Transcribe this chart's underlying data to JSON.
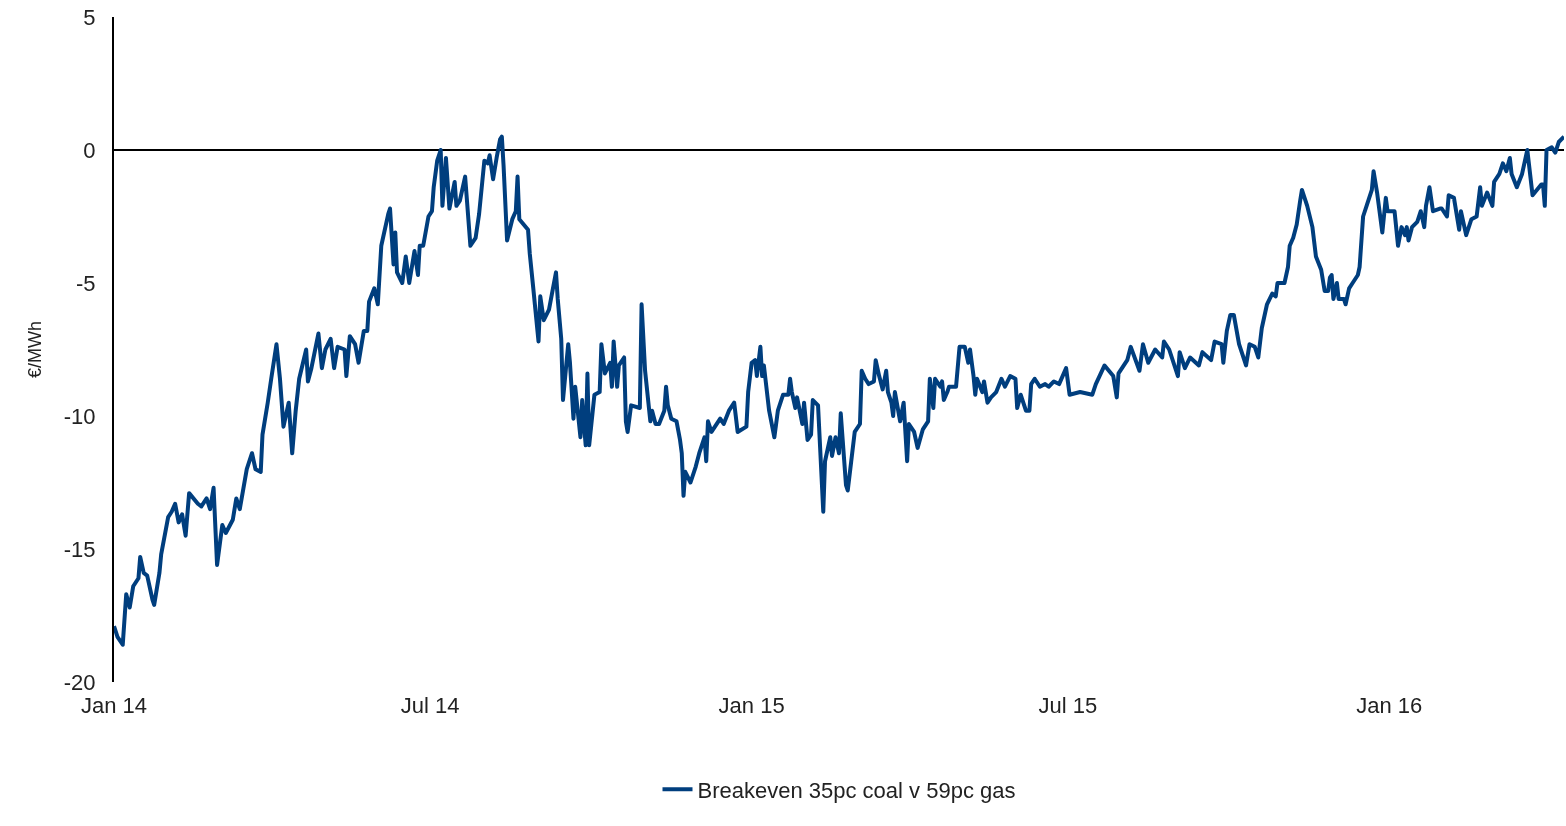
{
  "chart_data": {
    "type": "line",
    "ylabel": "€/MWh",
    "xlim": [
      "2014-01-01",
      "2016-04-10"
    ],
    "xticks": [
      {
        "value": "2014-01-01",
        "label": "Jan 14"
      },
      {
        "value": "2014-07-01",
        "label": "Jul 14"
      },
      {
        "value": "2015-01-01",
        "label": "Jan 15"
      },
      {
        "value": "2015-07-01",
        "label": "Jul 15"
      },
      {
        "value": "2016-01-01",
        "label": "Jan 16"
      }
    ],
    "ylim": [
      -20,
      5
    ],
    "yticks": [
      -20,
      -15,
      -10,
      -5,
      0,
      5
    ],
    "grid": false,
    "legend": "bottom",
    "marker": "none",
    "line_style": "solid",
    "ref_lines": [
      {
        "axis": "y",
        "value": 0,
        "color": "#000000"
      }
    ],
    "x": [
      "2014-01-01",
      "2014-01-03",
      "2014-01-06",
      "2014-01-08",
      "2014-01-10",
      "2014-01-12",
      "2014-01-15",
      "2014-01-16",
      "2014-01-18",
      "2014-01-20",
      "2014-01-23",
      "2014-01-24",
      "2014-01-27",
      "2014-01-28",
      "2014-02-01",
      "2014-02-03",
      "2014-02-05",
      "2014-02-07",
      "2014-02-09",
      "2014-02-11",
      "2014-02-13",
      "2014-02-18",
      "2014-02-20",
      "2014-02-23",
      "2014-02-25",
      "2014-02-27",
      "2014-03-01",
      "2014-03-04",
      "2014-03-06",
      "2014-03-10",
      "2014-03-12",
      "2014-03-14",
      "2014-03-18",
      "2014-03-21",
      "2014-03-23",
      "2014-03-26",
      "2014-03-27",
      "2014-03-30",
      "2014-04-01",
      "2014-04-04",
      "2014-04-06",
      "2014-04-08",
      "2014-04-11",
      "2014-04-13",
      "2014-04-15",
      "2014-04-17",
      "2014-04-21",
      "2014-04-22",
      "2014-04-24",
      "2014-04-28",
      "2014-04-30",
      "2014-05-02",
      "2014-05-05",
      "2014-05-07",
      "2014-05-09",
      "2014-05-13",
      "2014-05-14",
      "2014-05-16",
      "2014-05-19",
      "2014-05-21",
      "2014-05-24",
      "2014-05-26",
      "2014-05-27",
      "2014-05-30",
      "2014-06-01",
      "2014-06-03",
      "2014-06-07",
      "2014-06-08",
      "2014-06-10",
      "2014-06-11",
      "2014-06-12",
      "2014-06-15",
      "2014-06-17",
      "2014-06-19",
      "2014-06-22",
      "2014-06-24",
      "2014-06-25",
      "2014-06-27",
      "2014-06-30",
      "2014-07-02",
      "2014-07-03",
      "2014-07-05",
      "2014-07-07",
      "2014-07-08",
      "2014-07-10",
      "2014-07-12",
      "2014-07-15",
      "2014-07-16",
      "2014-07-18",
      "2014-07-21",
      "2014-07-24",
      "2014-07-27",
      "2014-07-29",
      "2014-08-01",
      "2014-08-03",
      "2014-08-04",
      "2014-08-06",
      "2014-08-08",
      "2014-08-10",
      "2014-08-11",
      "2014-08-12",
      "2014-08-14",
      "2014-08-17",
      "2014-08-19",
      "2014-08-20",
      "2014-08-21",
      "2014-08-26",
      "2014-08-27",
      "2014-08-29",
      "2014-09-01",
      "2014-09-02",
      "2014-09-04",
      "2014-09-07",
      "2014-09-09",
      "2014-09-11",
      "2014-09-12",
      "2014-09-14",
      "2014-09-15",
      "2014-09-18",
      "2014-09-19",
      "2014-09-21",
      "2014-09-22",
      "2014-09-25",
      "2014-09-26",
      "2014-09-27",
      "2014-09-28",
      "2014-09-29",
      "2014-09-30",
      "2014-10-03",
      "2014-10-06",
      "2014-10-07",
      "2014-10-09",
      "2014-10-12",
      "2014-10-13",
      "2014-10-14",
      "2014-10-16",
      "2014-10-17",
      "2014-10-20",
      "2014-10-21",
      "2014-10-22",
      "2014-10-24",
      "2014-10-29",
      "2014-10-30",
      "2014-11-01",
      "2014-11-04",
      "2014-11-05",
      "2014-11-07",
      "2014-11-09",
      "2014-11-12",
      "2014-11-13",
      "2014-11-14",
      "2014-11-16",
      "2014-11-19",
      "2014-11-21",
      "2014-11-22",
      "2014-11-23",
      "2014-11-24",
      "2014-11-27",
      "2014-11-30",
      "2014-12-02",
      "2014-12-05",
      "2014-12-06",
      "2014-12-07",
      "2014-12-09",
      "2014-12-11",
      "2014-12-14",
      "2014-12-16",
      "2014-12-19",
      "2014-12-22",
      "2014-12-24",
      "2014-12-29",
      "2014-12-30",
      "2015-01-01",
      "2015-01-03",
      "2015-01-04",
      "2015-01-06",
      "2015-01-07",
      "2015-01-08",
      "2015-01-11",
      "2015-01-14",
      "2015-01-16",
      "2015-01-19",
      "2015-01-22",
      "2015-01-23",
      "2015-01-24",
      "2015-01-26",
      "2015-01-27",
      "2015-01-30",
      "2015-01-31",
      "2015-02-02",
      "2015-02-04",
      "2015-02-05",
      "2015-02-08",
      "2015-02-11",
      "2015-02-12",
      "2015-02-15",
      "2015-02-16",
      "2015-02-18",
      "2015-02-20",
      "2015-02-21",
      "2015-02-24",
      "2015-02-25",
      "2015-02-27",
      "2015-03-01",
      "2015-03-04",
      "2015-03-05",
      "2015-03-07",
      "2015-03-09",
      "2015-03-12",
      "2015-03-13",
      "2015-03-15",
      "2015-03-17",
      "2015-03-19",
      "2015-03-20",
      "2015-03-22",
      "2015-03-23",
      "2015-03-24",
      "2015-03-27",
      "2015-03-29",
      "2015-03-31",
      "2015-04-01",
      "2015-04-04",
      "2015-04-06",
      "2015-04-09",
      "2015-04-12",
      "2015-04-13",
      "2015-04-15",
      "2015-04-16",
      "2015-04-19",
      "2015-04-20",
      "2015-04-21",
      "2015-04-23",
      "2015-04-24",
      "2015-04-28",
      "2015-04-30",
      "2015-05-03",
      "2015-05-05",
      "2015-05-06",
      "2015-05-08",
      "2015-05-09",
      "2015-05-10",
      "2015-05-13",
      "2015-05-14",
      "2015-05-16",
      "2015-05-18",
      "2015-05-21",
      "2015-05-24",
      "2015-05-26",
      "2015-05-29",
      "2015-06-01",
      "2015-06-02",
      "2015-06-04",
      "2015-06-07",
      "2015-06-09",
      "2015-06-10",
      "2015-06-12",
      "2015-06-15",
      "2015-06-18",
      "2015-06-20",
      "2015-06-23",
      "2015-06-26",
      "2015-06-30",
      "2015-07-02",
      "2015-07-08",
      "2015-07-15",
      "2015-07-17",
      "2015-07-22",
      "2015-07-27",
      "2015-07-29",
      "2015-07-30",
      "2015-08-04",
      "2015-08-06",
      "2015-08-11",
      "2015-08-13",
      "2015-08-16",
      "2015-08-20",
      "2015-08-24",
      "2015-08-25",
      "2015-08-28",
      "2015-09-02",
      "2015-09-03",
      "2015-09-06",
      "2015-09-09",
      "2015-09-14",
      "2015-09-16",
      "2015-09-21",
      "2015-09-23",
      "2015-09-27",
      "2015-09-28",
      "2015-09-30",
      "2015-10-02",
      "2015-10-04",
      "2015-10-07",
      "2015-10-11",
      "2015-10-13",
      "2015-10-16",
      "2015-10-18",
      "2015-10-20",
      "2015-10-23",
      "2015-10-26",
      "2015-10-28",
      "2015-10-29",
      "2015-11-02",
      "2015-11-04",
      "2015-11-05",
      "2015-11-07",
      "2015-11-09",
      "2015-11-11",
      "2015-11-12",
      "2015-11-15",
      "2015-11-18",
      "2015-11-20",
      "2015-11-23",
      "2015-11-25",
      "2015-11-27",
      "2015-11-28",
      "2015-11-29",
      "2015-11-30",
      "2015-12-02",
      "2015-12-03",
      "2015-12-06",
      "2015-12-07",
      "2015-12-09",
      "2015-12-11",
      "2015-12-14",
      "2015-12-15",
      "2015-12-17",
      "2015-12-19",
      "2015-12-22",
      "2015-12-23",
      "2015-12-25",
      "2015-12-28",
      "2015-12-30",
      "2015-12-31",
      "2016-01-04",
      "2016-01-06",
      "2016-01-08",
      "2016-01-10",
      "2016-01-11",
      "2016-01-12",
      "2016-01-14",
      "2016-01-17",
      "2016-01-19",
      "2016-01-21",
      "2016-01-22",
      "2016-01-24",
      "2016-01-26",
      "2016-01-30",
      "2016-01-31",
      "2016-02-03",
      "2016-02-04",
      "2016-02-07",
      "2016-02-10",
      "2016-02-11",
      "2016-02-14",
      "2016-02-17",
      "2016-02-20",
      "2016-02-22",
      "2016-02-23",
      "2016-02-26",
      "2016-02-29",
      "2016-03-01",
      "2016-03-04",
      "2016-03-06",
      "2016-03-08",
      "2016-03-10",
      "2016-03-11",
      "2016-03-14",
      "2016-03-17",
      "2016-03-20",
      "2016-03-23",
      "2016-03-28",
      "2016-03-29",
      "2016-03-30",
      "2016-03-31",
      "2016-04-03",
      "2016-04-05",
      "2016-04-07",
      "2016-04-10"
    ],
    "series": [
      {
        "name": "Breakeven 35pc coal v 59pc gas",
        "color": "#003e7e",
        "values": [
          -17.9,
          -18.3,
          -18.6,
          -16.7,
          -17.2,
          -16.4,
          -16.1,
          -15.3,
          -15.9,
          -16.0,
          -16.9,
          -17.1,
          -15.9,
          -15.2,
          -13.8,
          -13.6,
          -13.3,
          -14.0,
          -13.7,
          -14.5,
          -12.9,
          -13.3,
          -13.4,
          -13.1,
          -13.5,
          -12.7,
          -15.6,
          -14.1,
          -14.4,
          -13.9,
          -13.1,
          -13.5,
          -12.0,
          -11.4,
          -12.0,
          -12.1,
          -10.7,
          -9.5,
          -8.6,
          -7.3,
          -8.6,
          -10.4,
          -9.5,
          -11.4,
          -9.8,
          -8.6,
          -7.5,
          -8.7,
          -8.2,
          -6.9,
          -8.2,
          -7.5,
          -7.1,
          -8.2,
          -7.4,
          -7.5,
          -8.5,
          -7.0,
          -7.3,
          -8.0,
          -6.8,
          -6.8,
          -5.7,
          -5.2,
          -5.8,
          -3.6,
          -2.4,
          -2.2,
          -4.3,
          -3.1,
          -4.6,
          -5.0,
          -4.0,
          -5.0,
          -3.8,
          -4.7,
          -3.6,
          -3.6,
          -2.5,
          -2.3,
          -1.4,
          -0.4,
          0.0,
          -2.1,
          -0.3,
          -2.2,
          -1.2,
          -2.1,
          -1.9,
          -1.0,
          -3.6,
          -3.3,
          -2.4,
          -0.4,
          -0.5,
          -0.2,
          -1.1,
          -0.3,
          0.4,
          0.5,
          -0.6,
          -3.4,
          -2.6,
          -2.3,
          -1.0,
          -2.6,
          -3.0,
          -3.9,
          -5.2,
          -7.2,
          -5.5,
          -6.4,
          -6.0,
          -5.3,
          -4.6,
          -5.6,
          -7.1,
          -9.4,
          -7.3,
          -8.0,
          -10.1,
          -8.9,
          -10.8,
          -9.4,
          -10.3,
          -11.1,
          -8.4,
          -11.1,
          -9.2,
          -9.1,
          -7.3,
          -8.4,
          -8.0,
          -8.9,
          -7.2,
          -8.9,
          -8.1,
          -7.8,
          -10.2,
          -10.6,
          -9.6,
          -9.7,
          -5.8,
          -8.3,
          -10.2,
          -9.8,
          -10.3,
          -10.3,
          -9.8,
          -8.9,
          -9.6,
          -10.1,
          -10.2,
          -10.9,
          -11.4,
          -13.0,
          -12.1,
          -12.5,
          -11.9,
          -11.4,
          -10.8,
          -11.7,
          -10.2,
          -10.6,
          -10.4,
          -10.1,
          -10.3,
          -9.8,
          -9.5,
          -10.6,
          -10.4,
          -9.1,
          -8.0,
          -7.9,
          -8.5,
          -7.4,
          -8.5,
          -8.1,
          -9.8,
          -10.8,
          -9.8,
          -9.2,
          -9.2,
          -8.6,
          -9.1,
          -9.7,
          -9.3,
          -10.3,
          -9.5,
          -10.9,
          -10.7,
          -9.4,
          -9.6,
          -13.6,
          -11.7,
          -10.8,
          -11.5,
          -10.8,
          -11.4,
          -9.9,
          -12.6,
          -12.8,
          -11.7,
          -10.6,
          -10.3,
          -8.3,
          -8.6,
          -8.8,
          -8.7,
          -7.9,
          -8.5,
          -9.0,
          -8.3,
          -9.1,
          -9.5,
          -10.0,
          -9.1,
          -10.2,
          -9.5,
          -11.7,
          -10.3,
          -10.6,
          -11.2,
          -10.5,
          -10.2,
          -8.6,
          -9.7,
          -8.6,
          -8.9,
          -8.7,
          -9.4,
          -9.1,
          -8.9,
          -8.9,
          -7.4,
          -7.4,
          -8.0,
          -7.5,
          -8.5,
          -9.2,
          -8.6,
          -9.1,
          -8.7,
          -9.5,
          -9.3,
          -9.1,
          -8.6,
          -8.9,
          -8.5,
          -8.6,
          -9.7,
          -9.2,
          -9.8,
          -9.8,
          -8.8,
          -8.6,
          -8.9,
          -8.8,
          -8.9,
          -8.7,
          -8.8,
          -8.2,
          -9.2,
          -9.1,
          -9.2,
          -8.8,
          -8.1,
          -8.5,
          -9.3,
          -8.4,
          -7.9,
          -7.4,
          -8.3,
          -7.3,
          -8.0,
          -7.5,
          -7.8,
          -7.2,
          -7.5,
          -8.5,
          -7.6,
          -8.2,
          -7.8,
          -8.1,
          -7.6,
          -7.9,
          -7.2,
          -7.3,
          -8.0,
          -6.8,
          -6.2,
          -6.2,
          -7.3,
          -8.1,
          -7.3,
          -7.4,
          -7.8,
          -6.7,
          -5.8,
          -5.4,
          -5.5,
          -5.0,
          -5.0,
          -4.4,
          -3.6,
          -3.3,
          -2.8,
          -1.9,
          -1.5,
          -2.1,
          -2.9,
          -4.0,
          -4.5,
          -5.3,
          -5.3,
          -4.8,
          -4.7,
          -5.6,
          -5.0,
          -5.6,
          -5.6,
          -5.8,
          -5.2,
          -5.0,
          -4.7,
          -4.4,
          -2.5,
          -2.1,
          -1.5,
          -0.8,
          -1.6,
          -3.1,
          -1.8,
          -2.3,
          -2.3,
          -3.6,
          -2.9,
          -3.2,
          -2.9,
          -3.4,
          -2.9,
          -2.7,
          -2.3,
          -2.9,
          -2.1,
          -1.4,
          -2.3,
          -2.2,
          -2.2,
          -2.5,
          -1.7,
          -1.8,
          -3.0,
          -2.3,
          -3.2,
          -2.6,
          -2.5,
          -1.4,
          -2.1,
          -1.6,
          -2.1,
          -1.2,
          -0.9,
          -0.5,
          -0.8,
          -0.3,
          -0.9,
          -1.4,
          -0.9,
          0.0,
          -1.7,
          -1.3,
          -1.3,
          -2.1,
          0.0,
          0.1,
          -0.1,
          0.3,
          0.5
        ]
      }
    ]
  }
}
